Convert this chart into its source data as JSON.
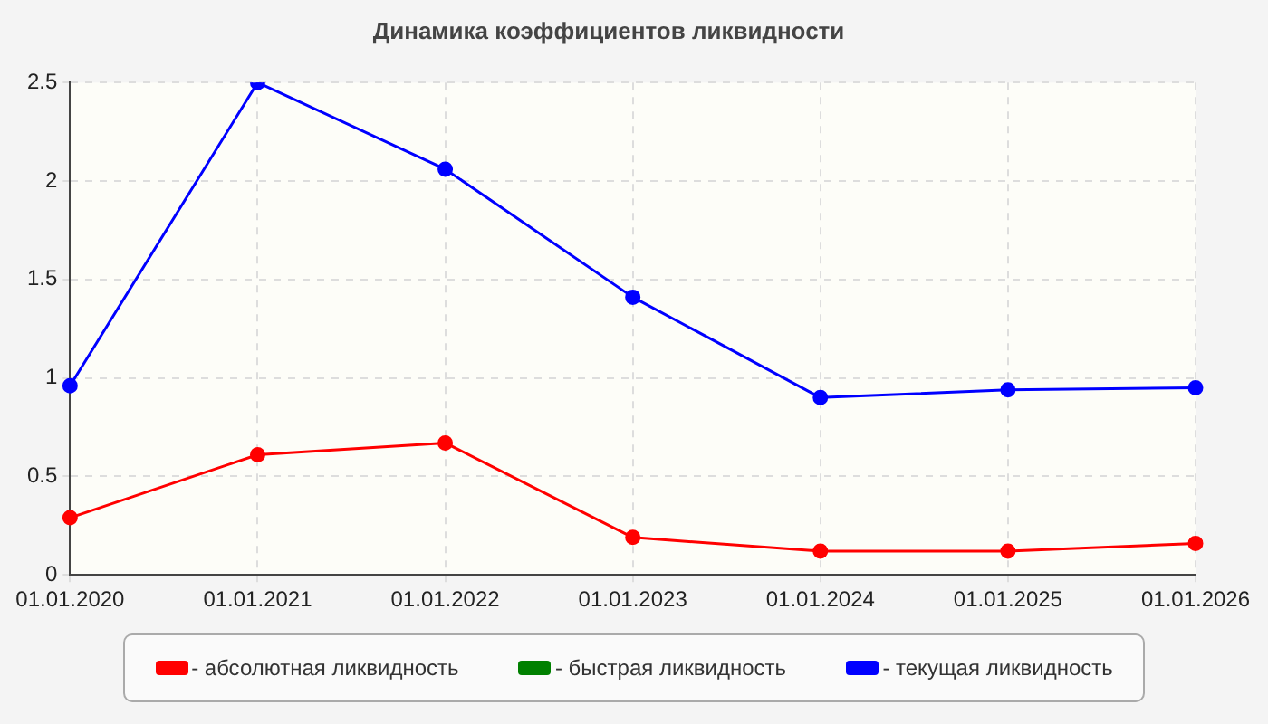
{
  "chart_data": {
    "type": "line",
    "title": "Динамика коэффициентов ликвидности",
    "categories": [
      "01.01.2020",
      "01.01.2021",
      "01.01.2022",
      "01.01.2023",
      "01.01.2024",
      "01.01.2025",
      "01.01.2026"
    ],
    "series": [
      {
        "name": "- абсолютная ликвидность",
        "color": "#ff0000",
        "values": [
          0.29,
          0.61,
          0.67,
          0.19,
          0.12,
          0.12,
          0.16
        ]
      },
      {
        "name": "- быстрая ликвидность",
        "color": "#008000",
        "values": [
          null,
          null,
          null,
          null,
          null,
          null,
          null
        ]
      },
      {
        "name": "- текущая ликвидность",
        "color": "#0000ff",
        "values": [
          0.96,
          2.5,
          2.06,
          1.41,
          0.9,
          0.94,
          0.95
        ]
      }
    ],
    "ylim": [
      0,
      2.5
    ],
    "yticks": [
      0,
      0.5,
      1,
      1.5,
      2,
      2.5
    ],
    "grid": true,
    "legend": "bottom",
    "marker": "circle",
    "line_style": "solid"
  }
}
